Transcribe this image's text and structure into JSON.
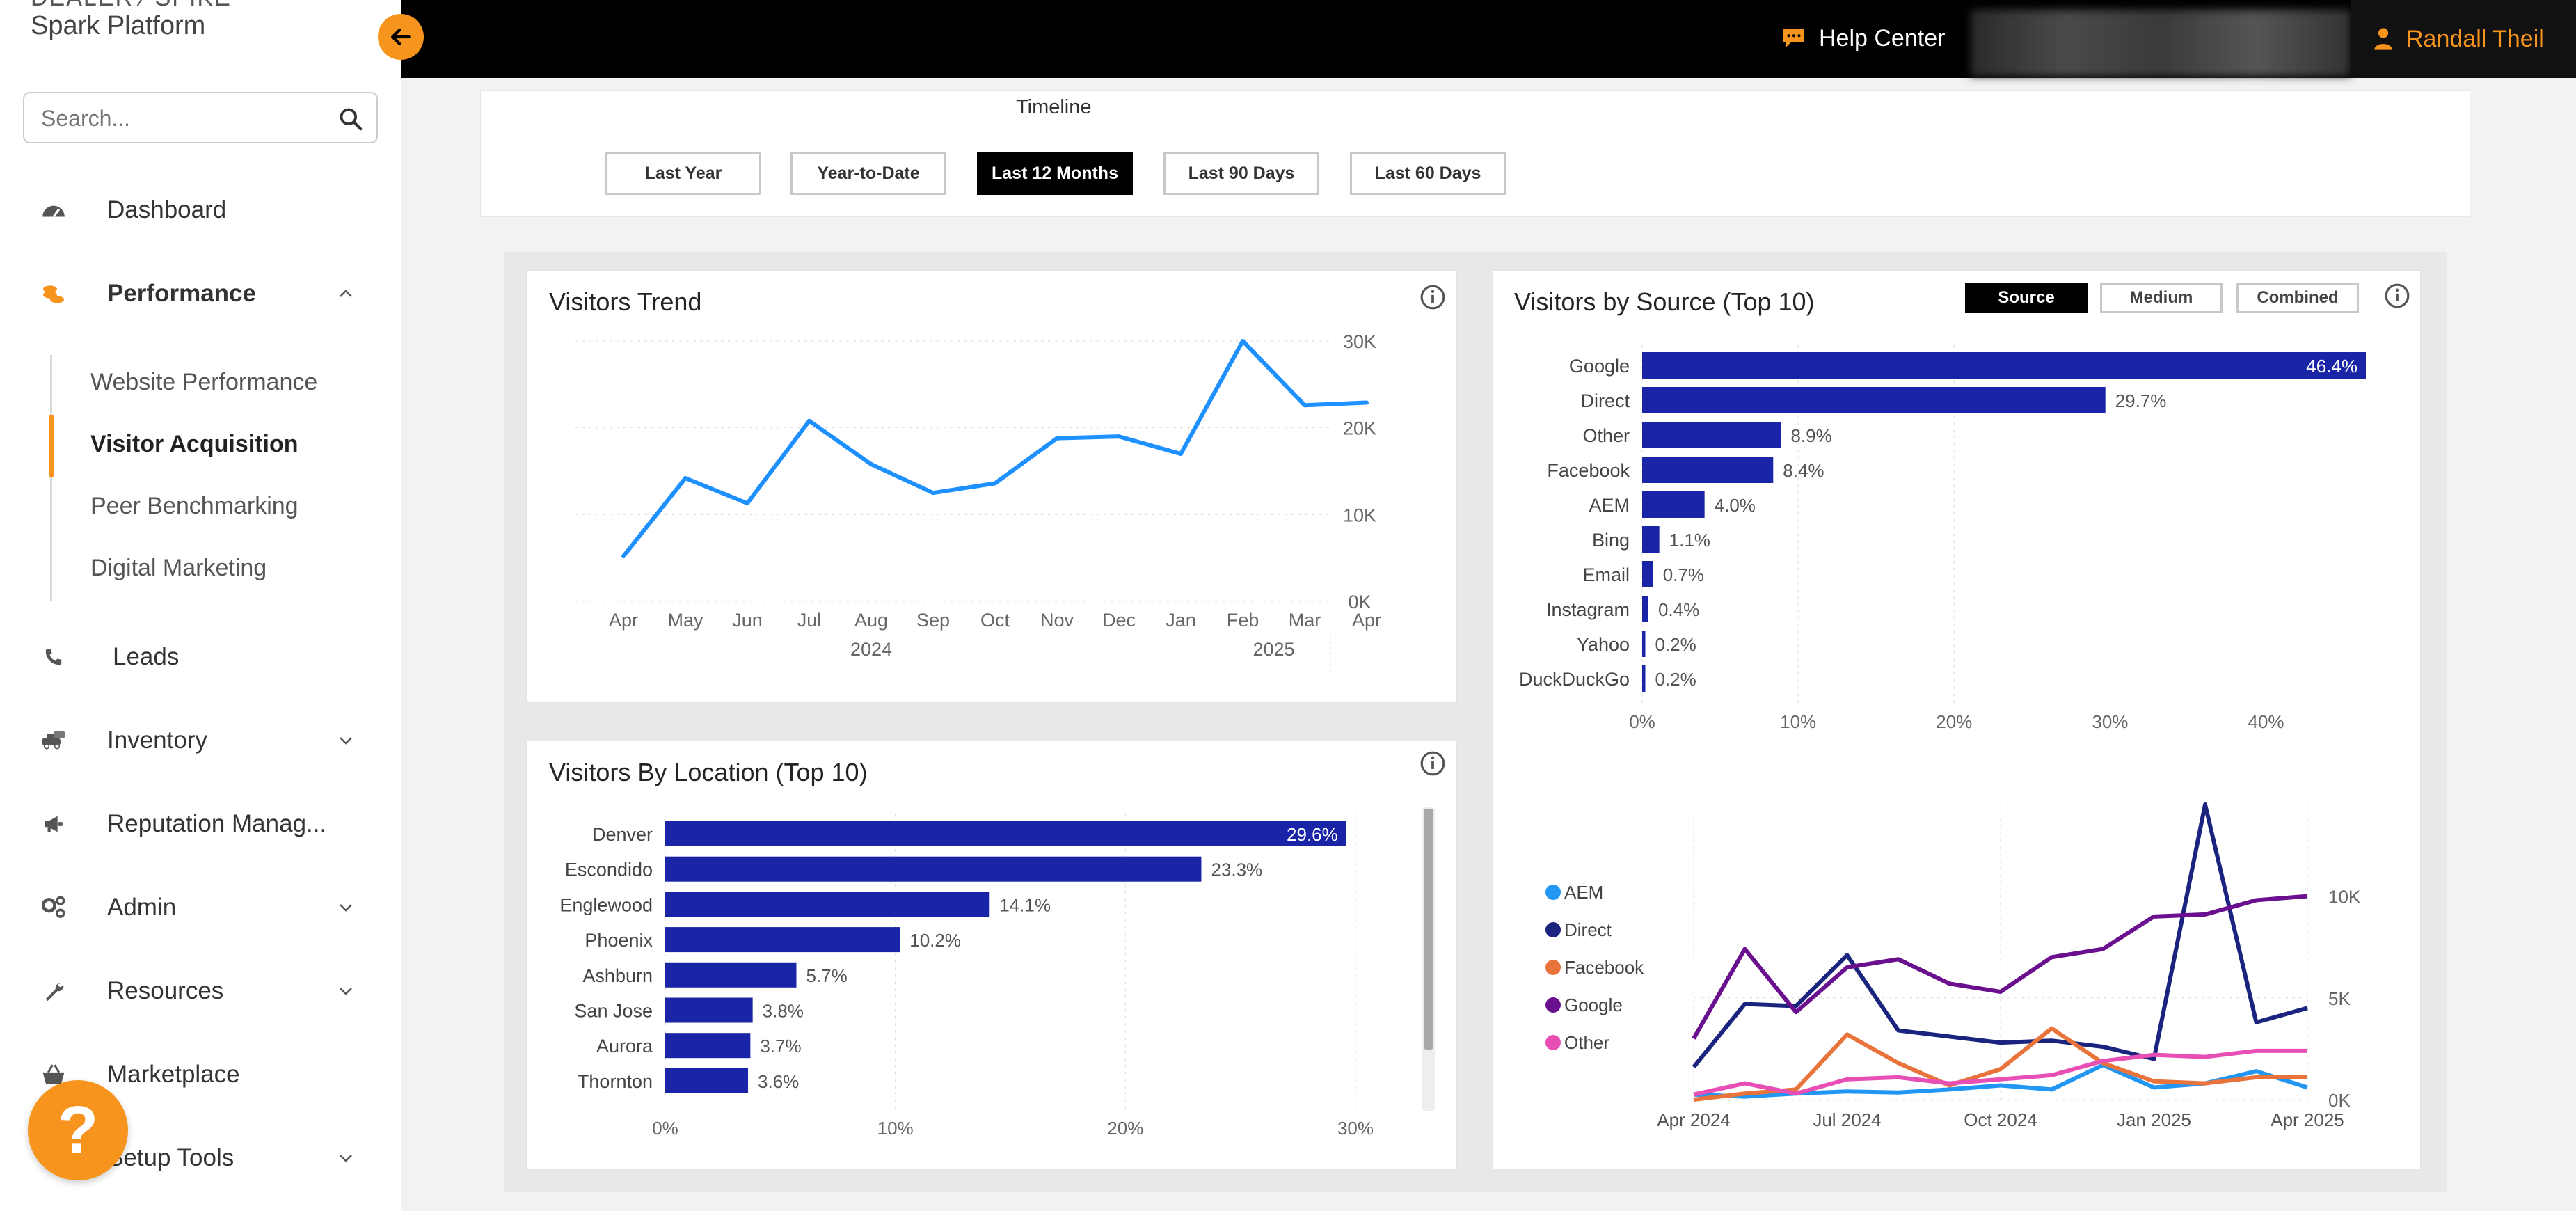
{
  "sidebar": {
    "brand_top": "DEALER ⁄ SPIKE",
    "brand": "Spark Platform",
    "search_placeholder": "Search...",
    "items": [
      {
        "label": "Dashboard"
      },
      {
        "label": "Performance"
      },
      {
        "label": "Leads"
      },
      {
        "label": "Inventory"
      },
      {
        "label": "Reputation Manag..."
      },
      {
        "label": "Admin"
      },
      {
        "label": "Resources"
      },
      {
        "label": "Marketplace"
      },
      {
        "label": "Setup Tools"
      }
    ],
    "sub_items": [
      {
        "label": "Website Performance"
      },
      {
        "label": "Visitor Acquisition"
      },
      {
        "label": "Peer Benchmarking"
      },
      {
        "label": "Digital Marketing"
      }
    ],
    "help_fab": "?"
  },
  "topbar": {
    "help_center": "Help Center",
    "user_name": "Randall Theil"
  },
  "timeline": {
    "title": "Timeline",
    "buttons": [
      "Last Year",
      "Year-to-Date",
      "Last 12 Months",
      "Last 90 Days",
      "Last 60 Days"
    ],
    "active": "Last 12 Months"
  },
  "cards": {
    "trend_title": "Visitors Trend",
    "source_title": "Visitors by Source (Top 10)",
    "location_title": "Visitors By Location (Top 10)",
    "source_toggle": [
      "Source",
      "Medium",
      "Combined"
    ],
    "source_toggle_active": "Source"
  },
  "colors": {
    "accent": "#f7941d",
    "bar": "#1a24a6",
    "trend_line": "#1e90ff",
    "series": {
      "AEM": "#2196f3",
      "Direct": "#1a237e",
      "Facebook": "#e8743b",
      "Google": "#6a0f8e",
      "Other": "#e84fb5"
    }
  },
  "chart_data": [
    {
      "type": "line",
      "title": "Visitors Trend",
      "x": [
        "Apr",
        "May",
        "Jun",
        "Jul",
        "Aug",
        "Sep",
        "Oct",
        "Nov",
        "Dec",
        "Jan",
        "Feb",
        "Mar",
        "Apr"
      ],
      "x_groups": [
        "2024",
        "2025"
      ],
      "values": [
        5200,
        14200,
        11300,
        20800,
        15800,
        12500,
        13600,
        18800,
        19000,
        17000,
        30000,
        22600,
        22900
      ],
      "y_ticks": [
        "0K",
        "10K",
        "20K",
        "30K"
      ],
      "ylim": [
        0,
        30000
      ],
      "grid": true
    },
    {
      "type": "bar",
      "title": "Visitors by Source (Top 10)",
      "orientation": "horizontal",
      "categories": [
        "Google",
        "Direct",
        "Other",
        "Facebook",
        "AEM",
        "Bing",
        "Email",
        "Instagram",
        "Yahoo",
        "DuckDuckGo"
      ],
      "values": [
        46.4,
        29.7,
        8.9,
        8.4,
        4.0,
        1.1,
        0.7,
        0.4,
        0.2,
        0.2
      ],
      "labels": [
        "46.4%",
        "29.7%",
        "8.9%",
        "8.4%",
        "4.0%",
        "1.1%",
        "0.7%",
        "0.4%",
        "0.2%",
        "0.2%"
      ],
      "x_ticks": [
        "0%",
        "10%",
        "20%",
        "30%",
        "40%"
      ],
      "xlim": [
        0,
        46.4
      ]
    },
    {
      "type": "bar",
      "title": "Visitors By Location (Top 10)",
      "orientation": "horizontal",
      "categories": [
        "Denver",
        "Escondido",
        "Englewood",
        "Phoenix",
        "Ashburn",
        "San Jose",
        "Aurora",
        "Thornton"
      ],
      "values": [
        29.6,
        23.3,
        14.1,
        10.2,
        5.7,
        3.8,
        3.7,
        3.6
      ],
      "labels": [
        "29.6%",
        "23.3%",
        "14.1%",
        "10.2%",
        "5.7%",
        "3.8%",
        "3.7%",
        "3.6%"
      ],
      "x_ticks": [
        "0%",
        "10%",
        "20%",
        "30%"
      ],
      "xlim": [
        0,
        30
      ]
    },
    {
      "type": "line",
      "x_ticks": [
        "Apr 2024",
        "Jul 2024",
        "Oct 2024",
        "Jan 2025",
        "Apr 2025"
      ],
      "y_ticks": [
        "0K",
        "5K",
        "10K"
      ],
      "ylim": [
        0,
        14500
      ],
      "legend": "left",
      "series": [
        {
          "name": "AEM",
          "values": [
            250,
            150,
            300,
            400,
            350,
            500,
            700,
            500,
            1700,
            600,
            800,
            1400,
            600
          ]
        },
        {
          "name": "Direct",
          "values": [
            1600,
            4700,
            4600,
            7100,
            3400,
            3100,
            2800,
            2900,
            2600,
            2000,
            14500,
            3800,
            4500
          ]
        },
        {
          "name": "Facebook",
          "values": [
            0,
            300,
            500,
            3200,
            1800,
            700,
            1500,
            3500,
            1800,
            900,
            800,
            1100,
            1100
          ]
        },
        {
          "name": "Google",
          "values": [
            3000,
            7400,
            4300,
            6500,
            6900,
            5700,
            5300,
            7000,
            7400,
            9000,
            9100,
            9800,
            10000
          ]
        },
        {
          "name": "Other",
          "values": [
            250,
            800,
            300,
            1000,
            1100,
            800,
            1000,
            1200,
            1900,
            2200,
            2100,
            2400,
            2400
          ]
        }
      ]
    }
  ]
}
